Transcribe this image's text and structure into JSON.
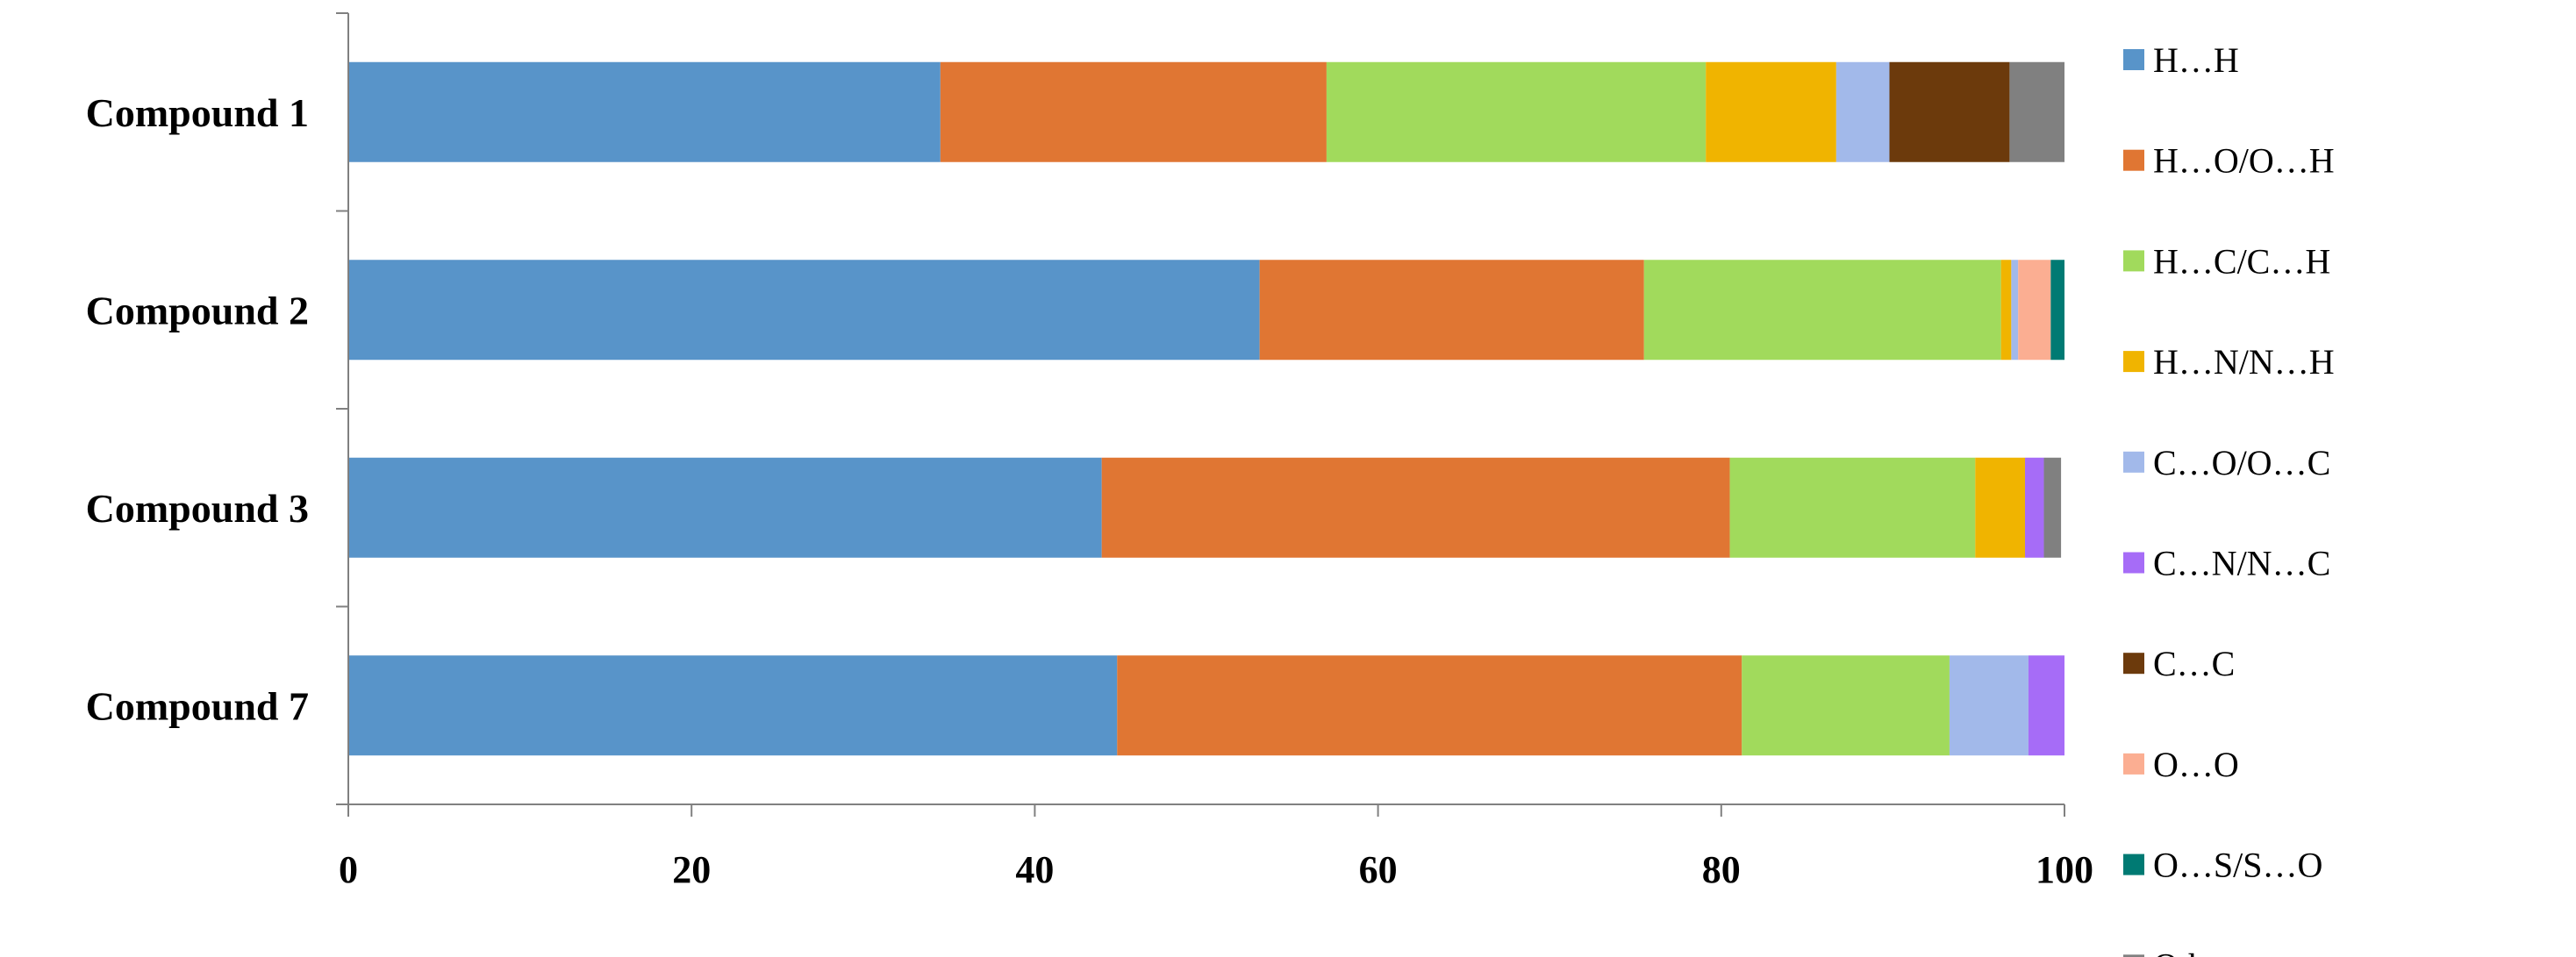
{
  "chart_data": {
    "type": "bar",
    "orientation": "horizontal",
    "stacked": true,
    "title": "",
    "xlabel": "",
    "ylabel": "",
    "xlim": [
      0,
      100
    ],
    "x_ticks": [
      0,
      20,
      40,
      60,
      80,
      100
    ],
    "grid": false,
    "legend_position": "right",
    "categories": [
      "Compound 1",
      "Compound 2",
      "Compound 3",
      "Compound 7"
    ],
    "series": [
      {
        "name": "H…H",
        "color": "#5894C9",
        "values": [
          34.5,
          53.1,
          43.9,
          44.8
        ]
      },
      {
        "name": "H…O/O…H",
        "color": "#E07633",
        "values": [
          22.5,
          22.4,
          36.6,
          36.4
        ]
      },
      {
        "name": "H…C/C…H",
        "color": "#A1DA5C",
        "values": [
          22.1,
          20.8,
          14.3,
          12.1
        ]
      },
      {
        "name": "H…N/N…H",
        "color": "#F0B400",
        "values": [
          7.6,
          0.6,
          2.9,
          0
        ]
      },
      {
        "name": "C…O/O…C",
        "color": "#A2B9EA",
        "values": [
          3.1,
          0.4,
          0,
          4.6
        ]
      },
      {
        "name": "C…N/N…C",
        "color": "#A66CF7",
        "values": [
          0,
          0,
          1.1,
          2.1
        ]
      },
      {
        "name": "C…C",
        "color": "#6C3A0C",
        "values": [
          7.0,
          0,
          0,
          0
        ]
      },
      {
        "name": "O…O",
        "color": "#FBAE92",
        "values": [
          0,
          1.9,
          0,
          0
        ]
      },
      {
        "name": "O…S/S…O",
        "color": "#007A73",
        "values": [
          0,
          0.8,
          0,
          0
        ]
      },
      {
        "name": "Other",
        "color": "#808080",
        "values": [
          3.2,
          0,
          1.0,
          0
        ]
      }
    ]
  }
}
